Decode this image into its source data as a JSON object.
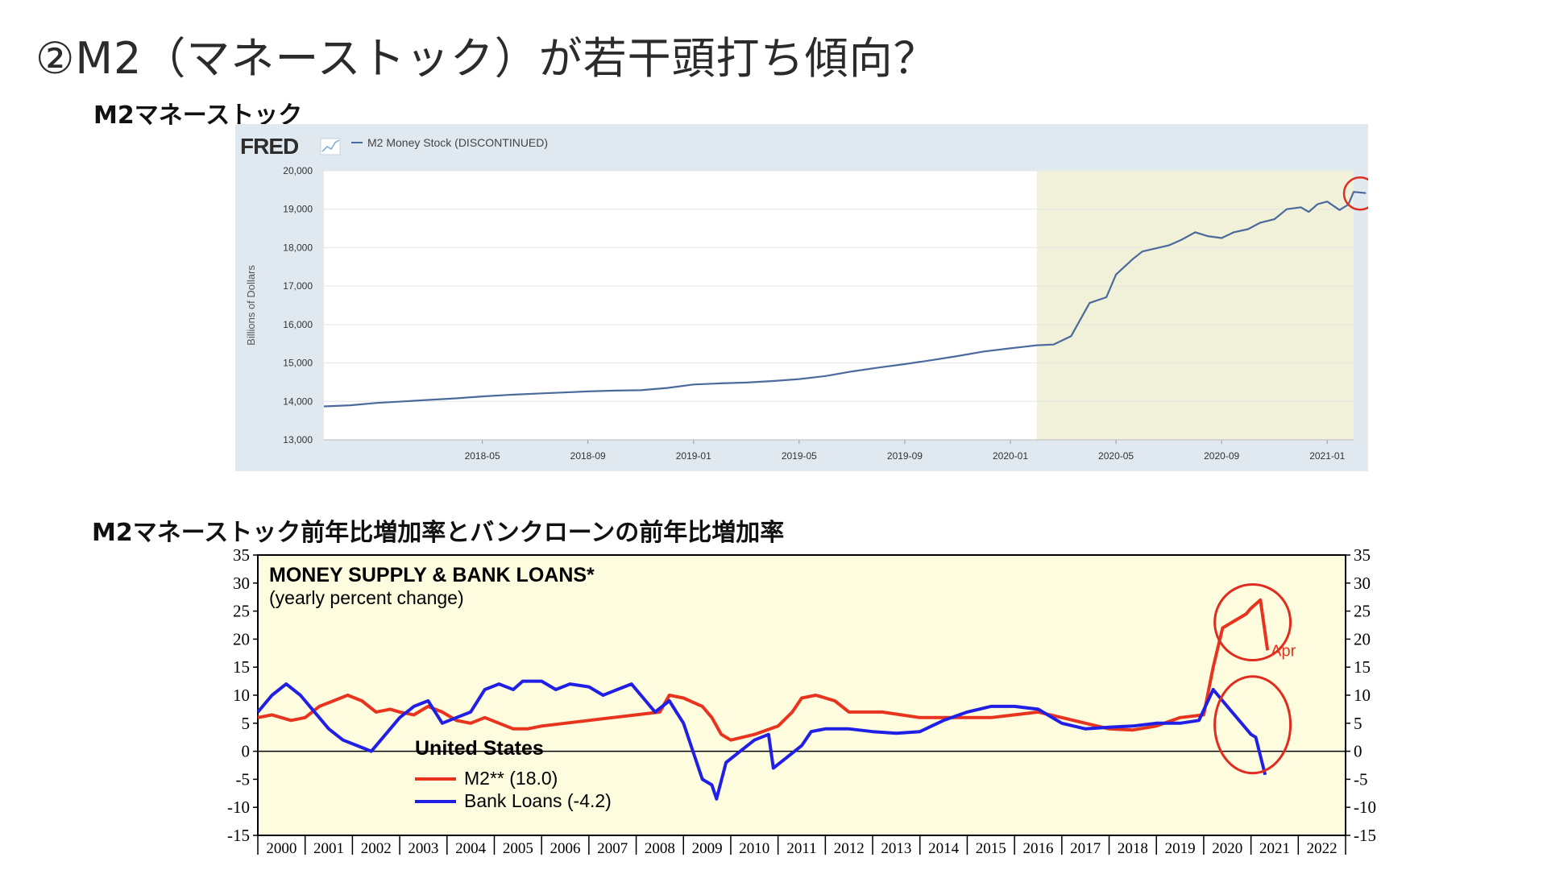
{
  "slide": {
    "title": "②M2（マネーストック）が若干頭打ち傾向？",
    "section1_label": "M2マネーストック",
    "section2_label": "M2マネーストック前年比増加率とバンクローンの前年比増加率"
  },
  "colors": {
    "fred_line": "#4a6a9c",
    "fred_recession": "#f1f0d8",
    "fred_panel": "#e1e9f0",
    "loans_bg": "#fefcde",
    "m2_red": "#e8341f",
    "loans_blue": "#1f1fe6",
    "highlight_circle": "#e02b1f"
  },
  "chart_data": [
    {
      "type": "line",
      "brand": "FRED",
      "legend_label": "M2 Money Stock (DISCONTINUED)",
      "ylabel": "Billions of Dollars",
      "ylim": [
        13000,
        20000
      ],
      "yticks": [
        "13,000",
        "14,000",
        "15,000",
        "16,000",
        "17,000",
        "18,000",
        "19,000",
        "20,000"
      ],
      "xlim": [
        "2017-11",
        "2021-02"
      ],
      "xticks": [
        "2018-05",
        "2018-09",
        "2019-01",
        "2019-05",
        "2019-09",
        "2020-01",
        "2020-05",
        "2020-09",
        "2021-01"
      ],
      "recession_shade": [
        "2020-02",
        "2021-02"
      ],
      "series": [
        {
          "name": "M2 Money Stock (DISCONTINUED)",
          "points": [
            [
              "2017-11",
              13870
            ],
            [
              "2017-12",
              13900
            ],
            [
              "2018-01",
              13960
            ],
            [
              "2018-02",
              14000
            ],
            [
              "2018-03",
              14040
            ],
            [
              "2018-04",
              14080
            ],
            [
              "2018-05",
              14130
            ],
            [
              "2018-06",
              14170
            ],
            [
              "2018-07",
              14200
            ],
            [
              "2018-08",
              14230
            ],
            [
              "2018-09",
              14260
            ],
            [
              "2018-10",
              14280
            ],
            [
              "2018-11",
              14290
            ],
            [
              "2018-12",
              14350
            ],
            [
              "2019-01",
              14440
            ],
            [
              "2019-02",
              14470
            ],
            [
              "2019-03",
              14490
            ],
            [
              "2019-04",
              14530
            ],
            [
              "2019-05",
              14580
            ],
            [
              "2019-06",
              14660
            ],
            [
              "2019-07",
              14780
            ],
            [
              "2019-08",
              14880
            ],
            [
              "2019-09",
              14970
            ],
            [
              "2019-10",
              15070
            ],
            [
              "2019-11",
              15180
            ],
            [
              "2019-12",
              15300
            ],
            [
              "2020-01",
              15380
            ],
            [
              "2020-02",
              15460
            ],
            [
              "2020-02-20",
              15480
            ],
            [
              "2020-03-10",
              15700
            ],
            [
              "2020-04",
              16560
            ],
            [
              "2020-04-20",
              16710
            ],
            [
              "2020-05",
              17300
            ],
            [
              "2020-05-20",
              17700
            ],
            [
              "2020-06",
              17900
            ],
            [
              "2020-07",
              18060
            ],
            [
              "2020-07-15",
              18200
            ],
            [
              "2020-08",
              18400
            ],
            [
              "2020-08-15",
              18300
            ],
            [
              "2020-09",
              18250
            ],
            [
              "2020-09-15",
              18400
            ],
            [
              "2020-10",
              18480
            ],
            [
              "2020-10-15",
              18650
            ],
            [
              "2020-11",
              18740
            ],
            [
              "2020-11-15",
              19000
            ],
            [
              "2020-12",
              19050
            ],
            [
              "2020-12-10",
              18930
            ],
            [
              "2020-12-20",
              19130
            ],
            [
              "2021-01",
              19200
            ],
            [
              "2021-01-15",
              18980
            ],
            [
              "2021-01-25",
              19120
            ],
            [
              "2021-02",
              19450
            ],
            [
              "2021-02-15",
              19420
            ]
          ]
        }
      ],
      "highlight": {
        "x": "2021-02",
        "y": 19450
      }
    },
    {
      "type": "line",
      "title": "MONEY SUPPLY & BANK LOANS*",
      "subtitle": "(yearly percent change)",
      "legend_title": "United States",
      "ylim": [
        -15,
        35
      ],
      "yticks": [
        "-15",
        "-10",
        "-5",
        "0",
        "5",
        "10",
        "15",
        "20",
        "25",
        "30",
        "35"
      ],
      "xlim": [
        2000,
        2023
      ],
      "xticks": [
        "2000",
        "2001",
        "2002",
        "2003",
        "2004",
        "2005",
        "2006",
        "2007",
        "2008",
        "2009",
        "2010",
        "2011",
        "2012",
        "2013",
        "2014",
        "2015",
        "2016",
        "2017",
        "2018",
        "2019",
        "2020",
        "2021",
        "2022"
      ],
      "annotation": "Apr",
      "series": [
        {
          "name": "M2** (18.0)",
          "points": [
            [
              2000.0,
              6
            ],
            [
              2000.3,
              6.5
            ],
            [
              2000.7,
              5.5
            ],
            [
              2001.0,
              6
            ],
            [
              2001.3,
              8
            ],
            [
              2001.6,
              9
            ],
            [
              2001.9,
              10
            ],
            [
              2002.2,
              9
            ],
            [
              2002.5,
              7
            ],
            [
              2002.8,
              7.5
            ],
            [
              2003.0,
              7
            ],
            [
              2003.3,
              6.5
            ],
            [
              2003.6,
              8
            ],
            [
              2003.9,
              7
            ],
            [
              2004.2,
              5.5
            ],
            [
              2004.5,
              5
            ],
            [
              2004.8,
              6
            ],
            [
              2005.1,
              5
            ],
            [
              2005.4,
              4
            ],
            [
              2005.7,
              4
            ],
            [
              2006.0,
              4.5
            ],
            [
              2006.5,
              5
            ],
            [
              2007.0,
              5.5
            ],
            [
              2007.5,
              6
            ],
            [
              2008.0,
              6.5
            ],
            [
              2008.5,
              7
            ],
            [
              2008.7,
              10
            ],
            [
              2009.0,
              9.5
            ],
            [
              2009.4,
              8
            ],
            [
              2009.6,
              6
            ],
            [
              2009.8,
              3
            ],
            [
              2010.0,
              2
            ],
            [
              2010.5,
              3
            ],
            [
              2011.0,
              4.5
            ],
            [
              2011.3,
              7
            ],
            [
              2011.5,
              9.5
            ],
            [
              2011.8,
              10
            ],
            [
              2012.2,
              9
            ],
            [
              2012.5,
              7
            ],
            [
              2012.8,
              7
            ],
            [
              2013.2,
              7
            ],
            [
              2013.6,
              6.5
            ],
            [
              2014.0,
              6
            ],
            [
              2014.5,
              6
            ],
            [
              2015.0,
              6
            ],
            [
              2015.5,
              6
            ],
            [
              2016.0,
              6.5
            ],
            [
              2016.5,
              7
            ],
            [
              2017.0,
              6
            ],
            [
              2017.5,
              5
            ],
            [
              2018.0,
              4
            ],
            [
              2018.5,
              3.8
            ],
            [
              2019.0,
              4.5
            ],
            [
              2019.5,
              6
            ],
            [
              2020.0,
              6.5
            ],
            [
              2020.2,
              15
            ],
            [
              2020.4,
              22
            ],
            [
              2020.7,
              23.5
            ],
            [
              2020.9,
              24.5
            ],
            [
              2021.0,
              25.5
            ],
            [
              2021.2,
              27
            ],
            [
              2021.35,
              18
            ]
          ]
        },
        {
          "name": "Bank Loans (-4.2)",
          "points": [
            [
              2000.0,
              7
            ],
            [
              2000.3,
              10
            ],
            [
              2000.6,
              12
            ],
            [
              2000.9,
              10
            ],
            [
              2001.2,
              7
            ],
            [
              2001.5,
              4
            ],
            [
              2001.8,
              2
            ],
            [
              2002.1,
              1
            ],
            [
              2002.4,
              0
            ],
            [
              2002.7,
              3
            ],
            [
              2003.0,
              6
            ],
            [
              2003.3,
              8
            ],
            [
              2003.6,
              9
            ],
            [
              2003.9,
              5
            ],
            [
              2004.2,
              6
            ],
            [
              2004.5,
              7
            ],
            [
              2004.8,
              11
            ],
            [
              2005.1,
              12
            ],
            [
              2005.4,
              11
            ],
            [
              2005.6,
              12.5
            ],
            [
              2006.0,
              12.5
            ],
            [
              2006.3,
              11
            ],
            [
              2006.6,
              12
            ],
            [
              2007.0,
              11.5
            ],
            [
              2007.3,
              10
            ],
            [
              2007.6,
              11
            ],
            [
              2007.9,
              12
            ],
            [
              2008.2,
              9
            ],
            [
              2008.4,
              7
            ],
            [
              2008.7,
              9
            ],
            [
              2009.0,
              5
            ],
            [
              2009.2,
              0
            ],
            [
              2009.4,
              -5
            ],
            [
              2009.6,
              -6
            ],
            [
              2009.7,
              -8.5
            ],
            [
              2009.9,
              -2
            ],
            [
              2010.2,
              0
            ],
            [
              2010.5,
              2
            ],
            [
              2010.8,
              3
            ],
            [
              2010.9,
              -3
            ],
            [
              2011.2,
              -1
            ],
            [
              2011.5,
              1
            ],
            [
              2011.7,
              3.5
            ],
            [
              2012.0,
              4
            ],
            [
              2012.5,
              4
            ],
            [
              2013.0,
              3.5
            ],
            [
              2013.5,
              3.2
            ],
            [
              2014.0,
              3.5
            ],
            [
              2014.5,
              5.5
            ],
            [
              2015.0,
              7
            ],
            [
              2015.5,
              8
            ],
            [
              2016.0,
              8
            ],
            [
              2016.5,
              7.5
            ],
            [
              2017.0,
              5
            ],
            [
              2017.5,
              4
            ],
            [
              2018.0,
              4.3
            ],
            [
              2018.5,
              4.5
            ],
            [
              2019.0,
              5
            ],
            [
              2019.5,
              5
            ],
            [
              2019.9,
              5.5
            ],
            [
              2020.2,
              11
            ],
            [
              2020.4,
              9
            ],
            [
              2020.6,
              7
            ],
            [
              2020.8,
              5
            ],
            [
              2021.0,
              3
            ],
            [
              2021.1,
              2.5
            ],
            [
              2021.3,
              -4.2
            ]
          ]
        }
      ],
      "highlights": [
        {
          "x": 2021.0,
          "y": 23
        },
        {
          "x": 2021.0,
          "y": 4
        }
      ]
    }
  ]
}
